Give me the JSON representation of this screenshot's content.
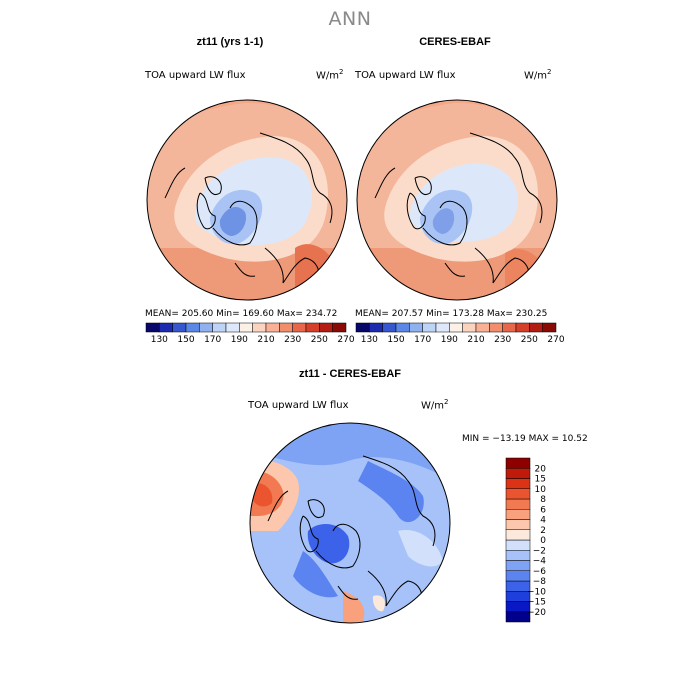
{
  "main_title": "ANN",
  "panels": [
    {
      "title": "zt11 (yrs 1-1)",
      "field_label": "TOA upward LW flux",
      "units_base": "W/m",
      "units_exp": "2",
      "stats": "MEAN= 205.60   Min= 169.60   Max= 234.72"
    },
    {
      "title": "CERES-EBAF",
      "field_label": "TOA upward LW flux",
      "units_base": "W/m",
      "units_exp": "2",
      "stats": "MEAN= 207.57   Min= 173.28   Max= 230.25"
    }
  ],
  "diff_panel": {
    "title": "zt11 - CERES-EBAF",
    "field_label": "TOA upward LW flux",
    "units_base": "W/m",
    "units_exp": "2",
    "stats": "MIN = −13.19 MAX =   10.52"
  },
  "chart_data": [
    {
      "type": "heatmap",
      "projection": "north-polar-stereographic",
      "title": "zt11 (yrs 1-1)",
      "variable": "TOA upward LW flux",
      "units": "W/m2",
      "mean": 205.6,
      "min": 169.6,
      "max": 234.72,
      "colorbar": {
        "levels": [
          130,
          150,
          170,
          190,
          210,
          230,
          250,
          270
        ],
        "colors": [
          "#08086b",
          "#1c2bb0",
          "#3657cf",
          "#5b87e6",
          "#8fb1f0",
          "#bdd4f7",
          "#dde9fb",
          "#fdf0e6",
          "#fcd3bf",
          "#f9b095",
          "#f28e6c",
          "#e8674a",
          "#d6402a",
          "#b41d13",
          "#8a0a05"
        ]
      }
    },
    {
      "type": "heatmap",
      "projection": "north-polar-stereographic",
      "title": "CERES-EBAF",
      "variable": "TOA upward LW flux",
      "units": "W/m2",
      "mean": 207.57,
      "min": 173.28,
      "max": 230.25,
      "colorbar": {
        "levels": [
          130,
          150,
          170,
          190,
          210,
          230,
          250,
          270
        ],
        "colors": [
          "#08086b",
          "#1c2bb0",
          "#3657cf",
          "#5b87e6",
          "#8fb1f0",
          "#bdd4f7",
          "#dde9fb",
          "#fdf0e6",
          "#fcd3bf",
          "#f9b095",
          "#f28e6c",
          "#e8674a",
          "#d6402a",
          "#b41d13",
          "#8a0a05"
        ]
      }
    },
    {
      "type": "heatmap",
      "projection": "north-polar-stereographic",
      "title": "zt11 - CERES-EBAF",
      "variable": "TOA upward LW flux",
      "units": "W/m2",
      "min": -13.19,
      "max": 10.52,
      "colorbar": {
        "orientation": "vertical",
        "levels": [
          -20,
          -15,
          -10,
          -8,
          -6,
          -4,
          -2,
          0,
          2,
          4,
          6,
          8,
          10,
          15,
          20
        ],
        "colors": [
          "#00008b",
          "#0718c4",
          "#1f3fdc",
          "#3b62e8",
          "#5b84f0",
          "#7fa3f4",
          "#a6c2f8",
          "#d2e0fb",
          "#fde8dc",
          "#fcc7ac",
          "#f9a07c",
          "#f27a52",
          "#ea5530",
          "#dc3317",
          "#bf1a0a",
          "#8e0000"
        ]
      }
    }
  ]
}
